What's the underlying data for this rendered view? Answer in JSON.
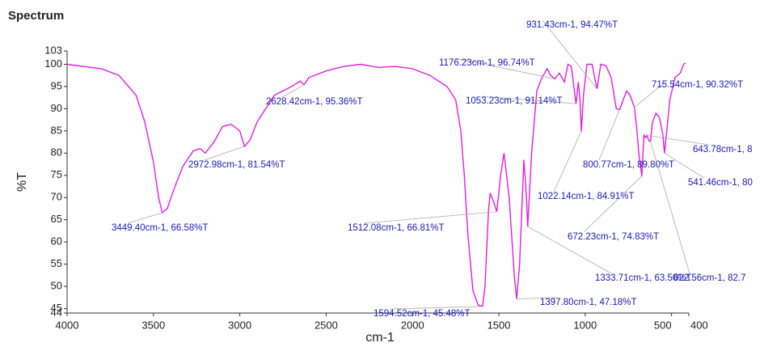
{
  "chart_data": {
    "type": "line",
    "title": "Spectrum",
    "xlabel": "cm-1",
    "ylabel": "%T",
    "xlim": [
      4000,
      400
    ],
    "ylim": [
      44,
      103
    ],
    "xticks": [
      4000,
      3500,
      3000,
      2500,
      2000,
      1500,
      1000,
      500,
      400
    ],
    "yticks": [
      44,
      45,
      50,
      55,
      60,
      65,
      70,
      75,
      80,
      85,
      90,
      95,
      100,
      103
    ],
    "series": [
      {
        "name": "Spectrum",
        "color": "#e01ee0",
        "x": [
          4000,
          3800,
          3700,
          3600,
          3550,
          3500,
          3470,
          3449,
          3420,
          3380,
          3330,
          3270,
          3230,
          3200,
          3150,
          3100,
          3050,
          3000,
          2973,
          2940,
          2900,
          2850,
          2800,
          2700,
          2650,
          2628,
          2600,
          2500,
          2400,
          2300,
          2200,
          2100,
          2000,
          1900,
          1800,
          1750,
          1720,
          1700,
          1680,
          1650,
          1620,
          1594,
          1580,
          1560,
          1550,
          1530,
          1512,
          1490,
          1470,
          1440,
          1410,
          1397,
          1380,
          1355,
          1340,
          1333,
          1310,
          1280,
          1250,
          1220,
          1200,
          1176,
          1150,
          1120,
          1100,
          1080,
          1053,
          1040,
          1030,
          1022,
          1010,
          990,
          960,
          940,
          931,
          910,
          880,
          850,
          820,
          800,
          780,
          760,
          740,
          715,
          700,
          690,
          672,
          660,
          650,
          643,
          630,
          622,
          610,
          590,
          570,
          550,
          541,
          530,
          510,
          480,
          450,
          430,
          420
        ],
        "values": [
          100,
          99,
          97.5,
          93,
          87,
          78,
          70,
          66.6,
          67.5,
          72,
          77,
          80.5,
          81,
          80,
          82.5,
          86,
          86.5,
          85,
          81.5,
          83,
          87,
          90,
          93,
          95,
          96.2,
          95.4,
          97,
          98.5,
          99.5,
          100,
          99.3,
          99.5,
          99,
          97.5,
          95,
          92,
          85,
          75,
          62,
          49,
          45.8,
          45.5,
          50,
          67,
          71,
          69,
          66.8,
          75,
          80,
          70,
          52,
          47.2,
          55,
          78.5,
          70,
          63.5,
          80,
          94,
          97,
          99,
          97.5,
          96.7,
          98,
          96,
          100,
          99.5,
          91.1,
          96,
          92,
          84.9,
          93,
          100,
          100,
          96,
          94.5,
          100,
          99.7,
          97,
          90,
          89.8,
          92,
          94,
          93,
          90.3,
          85,
          80,
          74.8,
          84,
          83.5,
          84,
          82.7,
          82.7,
          87,
          89,
          88,
          84,
          80,
          84,
          92,
          97,
          98,
          100,
          100.3
        ]
      }
    ],
    "annotations": [
      {
        "text": "3449.40cm-1, 66.58%T",
        "x": 3449.4,
        "y": 66.58
      },
      {
        "text": "2972.98cm-1, 81.54%T",
        "x": 2972.98,
        "y": 81.54
      },
      {
        "text": "2628.42cm-1, 95.36%T",
        "x": 2628.42,
        "y": 95.36
      },
      {
        "text": "1594.52cm-1, 45.48%T",
        "x": 1594.52,
        "y": 45.48
      },
      {
        "text": "1512.08cm-1, 66.81%T",
        "x": 1512.08,
        "y": 66.81
      },
      {
        "text": "1397.80cm-1, 47.18%T",
        "x": 1397.8,
        "y": 47.18
      },
      {
        "text": "1333.71cm-1, 63.50%T",
        "x": 1333.71,
        "y": 63.5
      },
      {
        "text": "1176.23cm-1, 96.74%T",
        "x": 1176.23,
        "y": 96.74
      },
      {
        "text": "1053.23cm-1, 91.14%T",
        "x": 1053.23,
        "y": 91.14
      },
      {
        "text": "1022.14cm-1, 84.91%T",
        "x": 1022.14,
        "y": 84.91
      },
      {
        "text": "931.43cm-1, 94.47%T",
        "x": 931.43,
        "y": 94.47
      },
      {
        "text": "800.77cm-1, 89.80%T",
        "x": 800.77,
        "y": 89.8
      },
      {
        "text": "715.54cm-1, 90.32%T",
        "x": 715.54,
        "y": 90.32
      },
      {
        "text": "672.23cm-1, 74.83%T",
        "x": 672.23,
        "y": 74.83
      },
      {
        "text": "643.78cm-1, 8",
        "x": 643.78,
        "y": 84
      },
      {
        "text": "622.56cm-1, 82.7",
        "x": 622.56,
        "y": 82.7
      },
      {
        "text": "541.46cm-1, 80",
        "x": 541.46,
        "y": 80
      }
    ]
  }
}
